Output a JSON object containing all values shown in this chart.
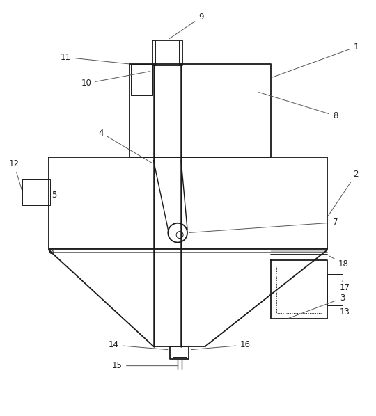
{
  "bg_color": "#ffffff",
  "line_color": "#1a1a1a",
  "lw": 1.3,
  "tlw": 0.7,
  "fs": 8.5,
  "fig_w": 5.4,
  "fig_h": 5.98
}
